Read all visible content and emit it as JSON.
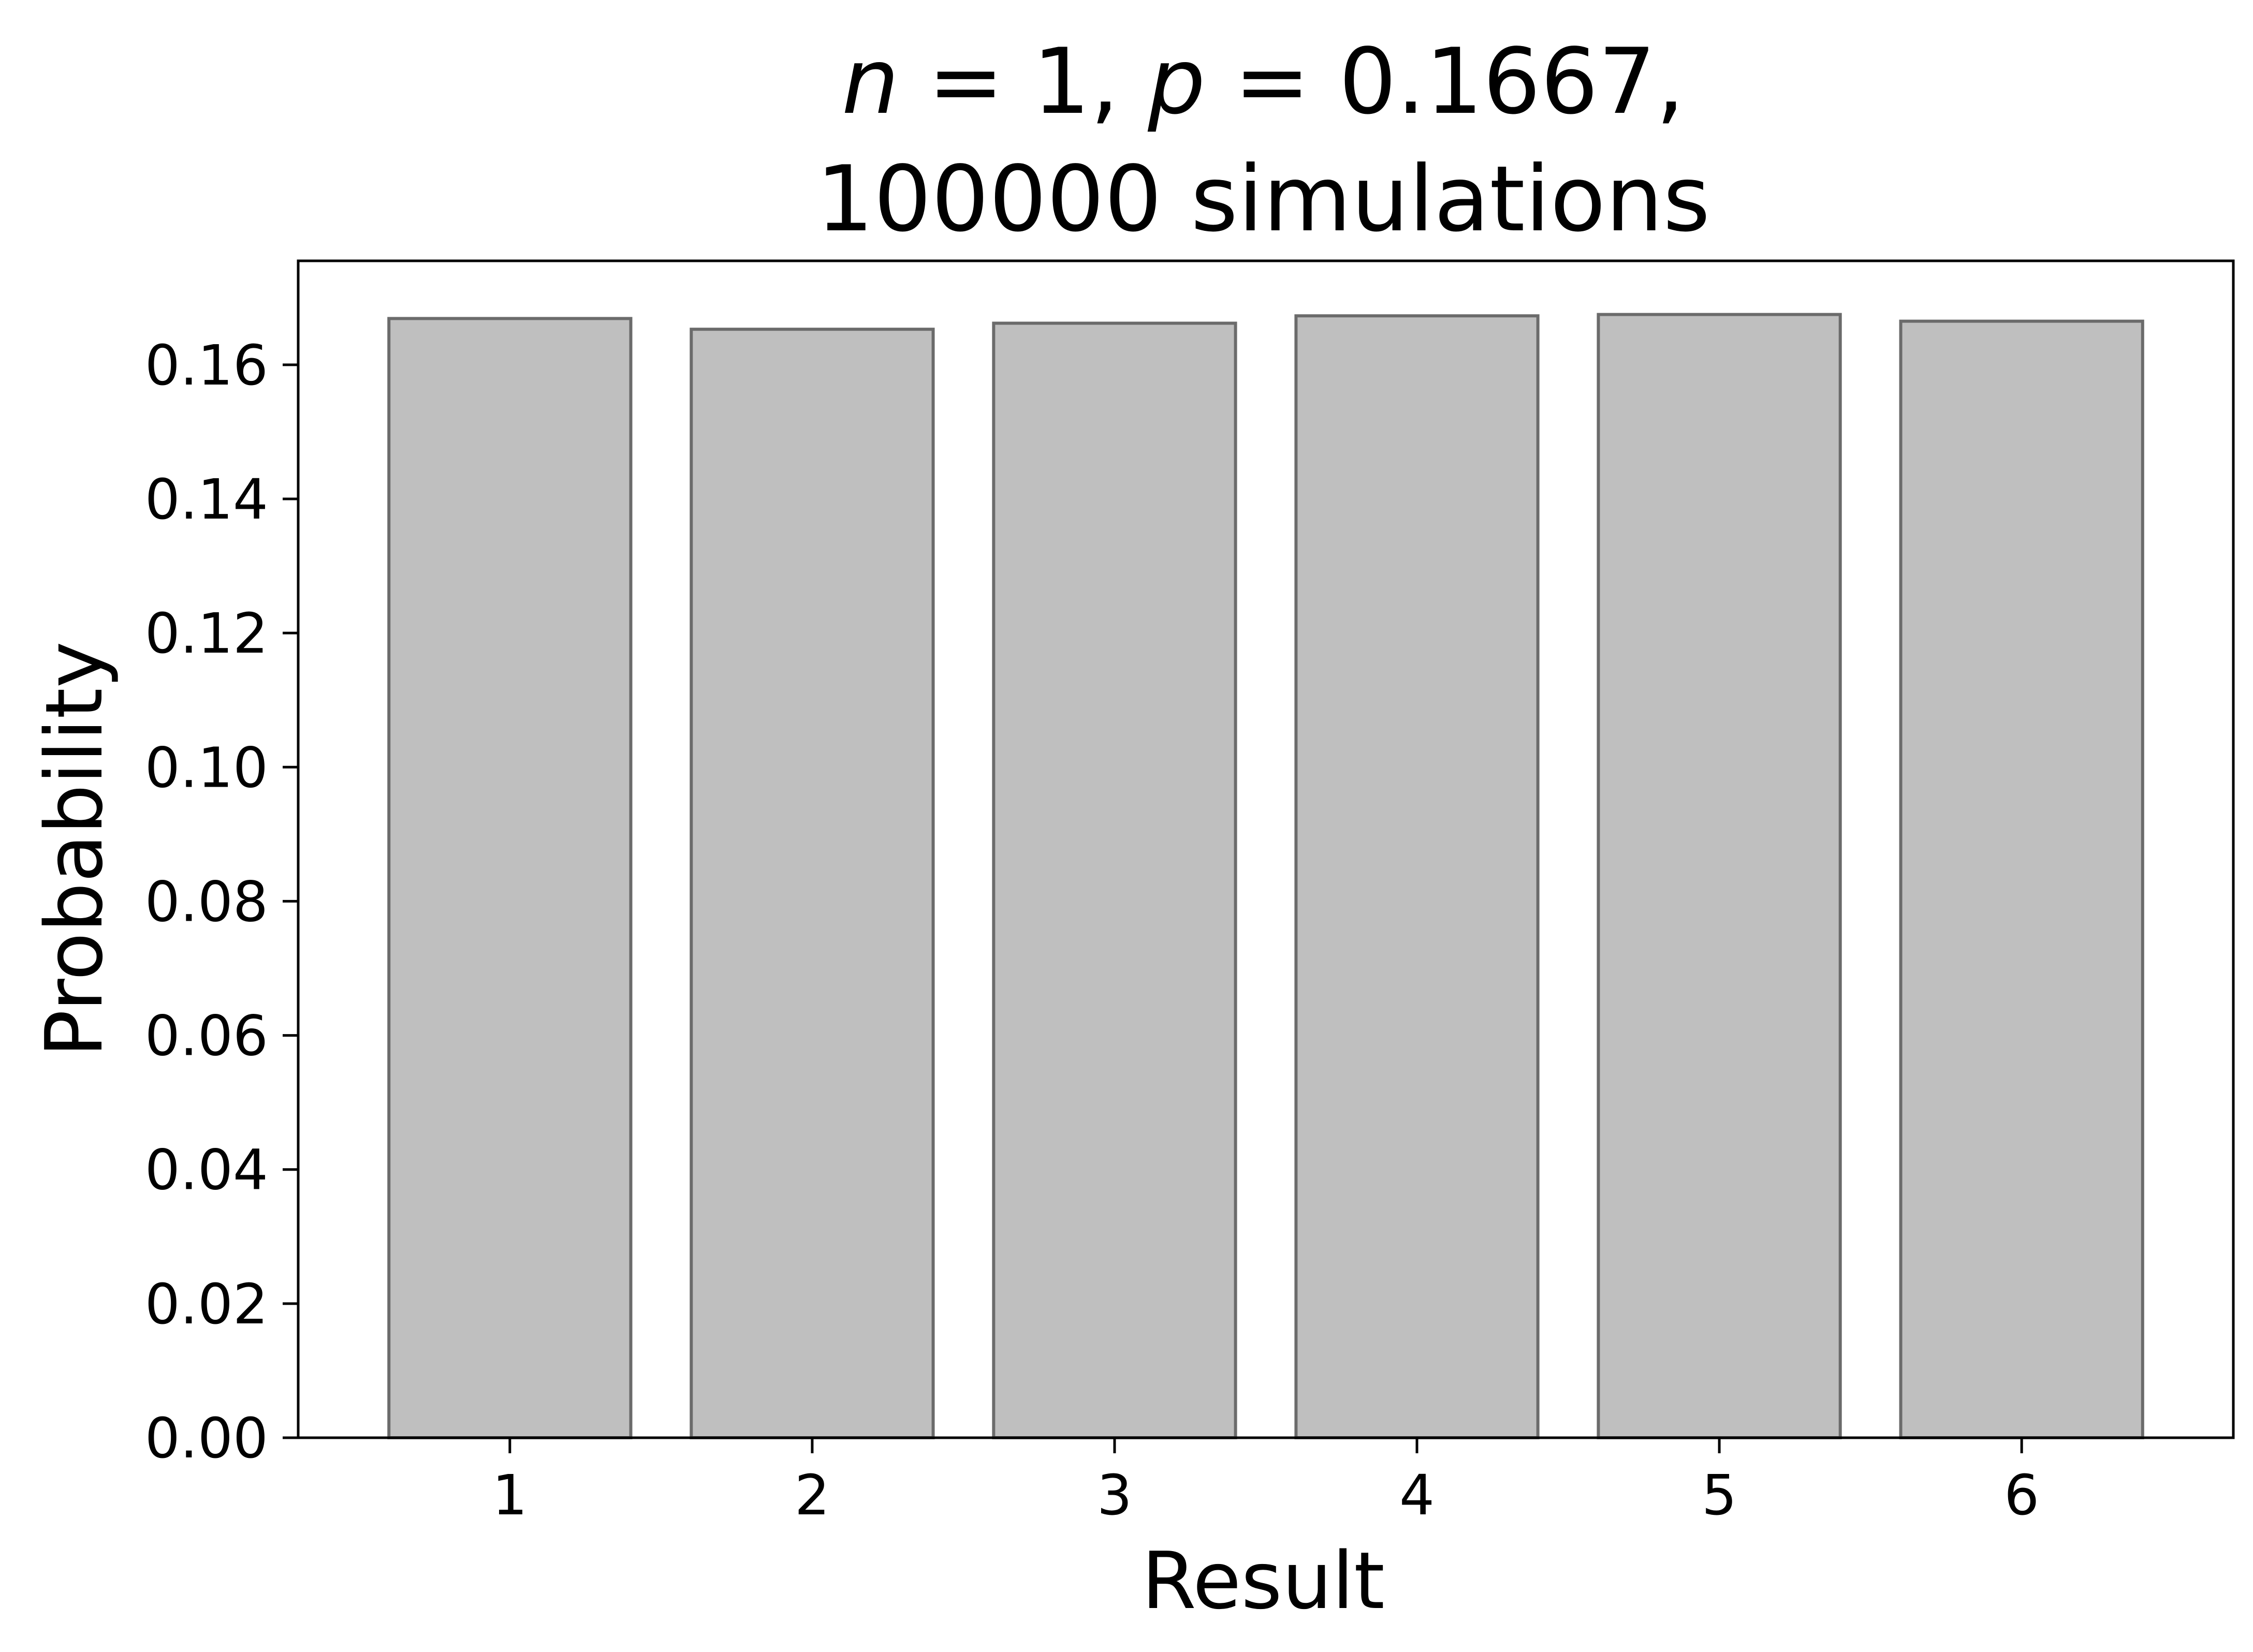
{
  "chart_data": {
    "type": "bar",
    "title_line1": {
      "n_symbol": "n",
      "n_eq": " = 1, ",
      "p_symbol": "p",
      "p_eq": " = 0.1667,"
    },
    "title_line2": "100000 simulations",
    "xlabel": "Result",
    "ylabel": "Probability",
    "categories": [
      "1",
      "2",
      "3",
      "4",
      "5",
      "6"
    ],
    "values": [
      0.1669,
      0.1653,
      0.1662,
      0.1673,
      0.1675,
      0.1665
    ],
    "ylim": [
      0,
      0.1755
    ],
    "yticks": [
      0.0,
      0.02,
      0.04,
      0.06,
      0.08,
      0.1,
      0.12,
      0.14,
      0.16
    ],
    "ytick_labels": [
      "0.00",
      "0.02",
      "0.04",
      "0.06",
      "0.08",
      "0.10",
      "0.12",
      "0.14",
      "0.16"
    ],
    "grid": false,
    "colors": {
      "bar_fill": "#bfbfbf",
      "bar_edge": "#6b6b6b",
      "axis": "#000000"
    }
  }
}
